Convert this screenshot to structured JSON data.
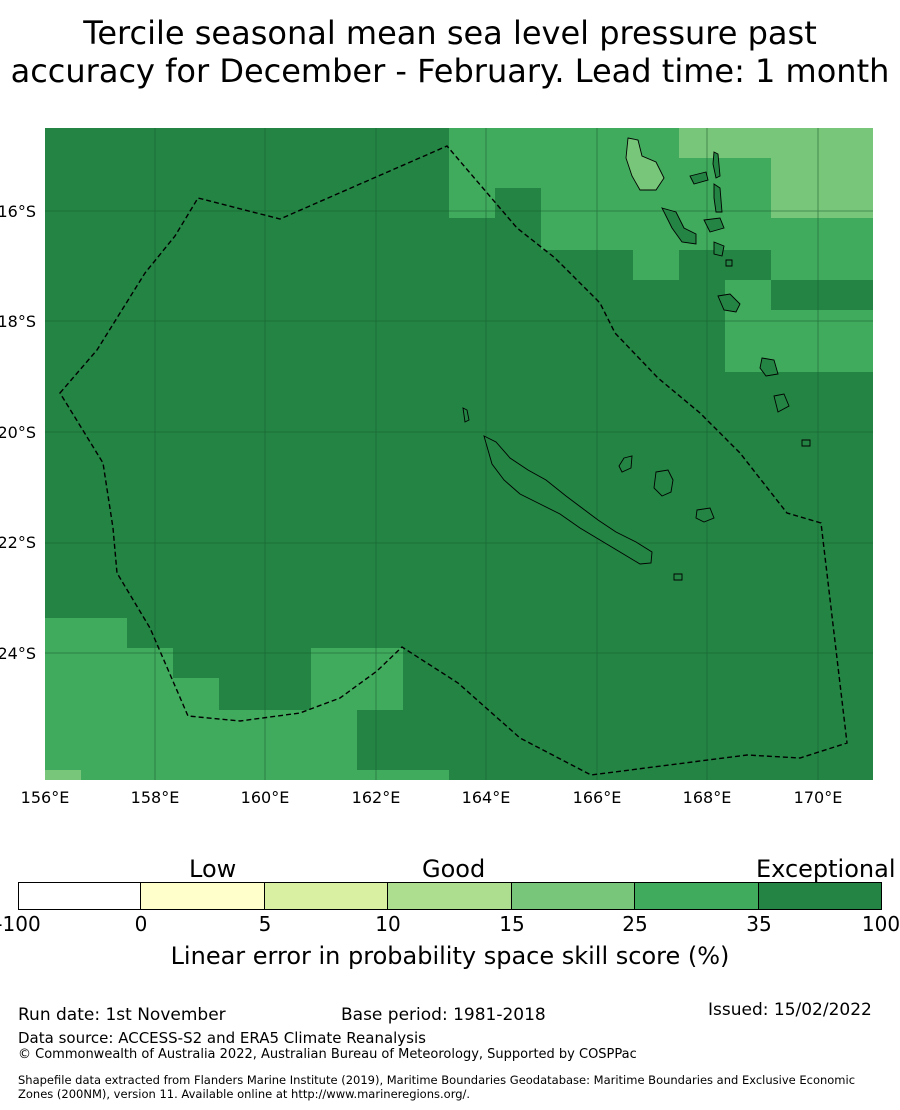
{
  "title": {
    "line1": "Tercile seasonal mean sea level pressure past",
    "line2": "accuracy for December - February. Lead time: 1 month"
  },
  "map": {
    "lat_labels": [
      "16°S",
      "18°S",
      "20°S",
      "22°S",
      "24°S"
    ],
    "lon_labels": [
      "156°E",
      "158°E",
      "160°E",
      "162°E",
      "164°E",
      "166°E",
      "168°E",
      "170°E"
    ]
  },
  "colorbar": {
    "categories": [
      "Low",
      "Good",
      "Exceptional"
    ],
    "ticks": [
      "-100",
      "0",
      "5",
      "10",
      "15",
      "25",
      "35",
      "100"
    ],
    "colors": [
      "#ffffff",
      "#ffffcc",
      "#d9f0a3",
      "#addd8e",
      "#78c679",
      "#41ab5d",
      "#238443"
    ],
    "label": "Linear error in probability space skill score (%)"
  },
  "footer": {
    "run_date": "Run date: 1st November",
    "base_period": "Base period: 1981-2018",
    "issued": "Issued: 15/02/2022",
    "data_source": "Data source: ACCESS-S2 and ERA5 Climate Reanalysis",
    "copyright": "© Commonwealth of Australia 2022, Australian Bureau of Meteorology, Supported by COSPPac",
    "shapefile_line1": "Shapefile data extracted from Flanders Marine Institute (2019), Maritime Boundaries Geodatabase: Maritime Boundaries and Exclusive Economic",
    "shapefile_line2": "Zones (200NM), version 11. Available online at http://www.marineregions.org/."
  }
}
